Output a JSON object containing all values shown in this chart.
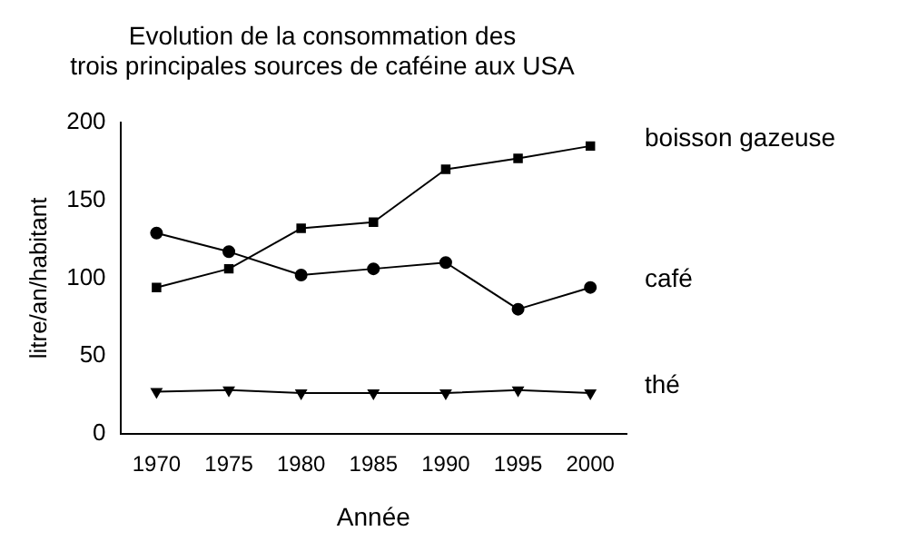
{
  "chart_data": {
    "type": "line",
    "title": "Evolution de la consommation des\ntrois principales sources de caféine aux USA",
    "xlabel": "Année",
    "ylabel": "litre/an/habitant",
    "categories": [
      "1970",
      "1975",
      "1980",
      "1985",
      "1990",
      "1995",
      "2000"
    ],
    "ylim": [
      0,
      200
    ],
    "yticks": [
      0,
      50,
      100,
      150,
      200
    ],
    "grid": false,
    "legend": false,
    "series": [
      {
        "name": "boisson gazeuse",
        "color": "#000000",
        "marker": "square",
        "values": [
          94,
          106,
          132,
          136,
          170,
          177,
          185
        ]
      },
      {
        "name": "café",
        "color": "#000000",
        "marker": "circle",
        "values": [
          129,
          117,
          102,
          106,
          110,
          80,
          94
        ]
      },
      {
        "name": "thé",
        "color": "#000000",
        "marker": "triangle",
        "values": [
          27,
          28,
          26,
          26,
          26,
          28,
          26
        ]
      }
    ]
  }
}
